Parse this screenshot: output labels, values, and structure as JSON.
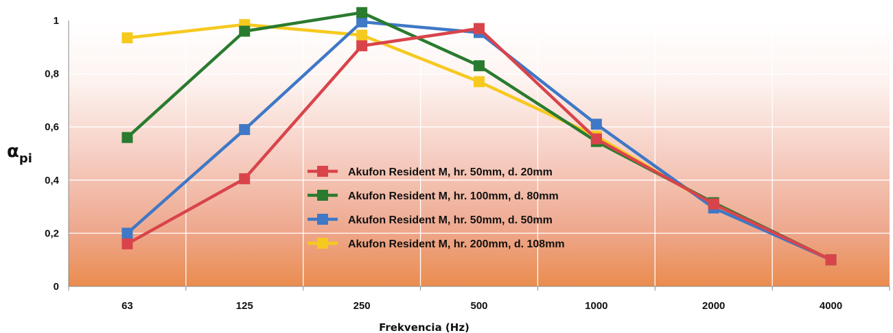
{
  "chart_data": {
    "type": "line",
    "categories": [
      "63",
      "125",
      "250",
      "500",
      "1000",
      "2000",
      "4000"
    ],
    "series": [
      {
        "name": "Akufon Resident M, hr. 50mm, d. 20mm",
        "color": "#d9444b",
        "values": [
          0.16,
          0.405,
          0.905,
          0.97,
          0.555,
          0.31,
          0.1
        ]
      },
      {
        "name": "Akufon Resident M, hr. 100mm, d. 80mm",
        "color": "#2a7b2f",
        "values": [
          0.56,
          0.96,
          1.03,
          0.83,
          0.545,
          0.315,
          0.1
        ]
      },
      {
        "name": "Akufon Resident M, hr. 50mm, d. 50mm",
        "color": "#3f78c6",
        "values": [
          0.2,
          0.59,
          0.995,
          0.955,
          0.61,
          0.295,
          0.1
        ]
      },
      {
        "name": "Akufon Resident M, hr. 200mm, d. 108mm",
        "color": "#f6c91e",
        "values": [
          0.935,
          0.985,
          0.945,
          0.77,
          0.565,
          0.305,
          0.1
        ]
      }
    ],
    "xlabel": "Frekvencia (Hz)",
    "ylabel_main": "α",
    "ylabel_sub": "pi",
    "ylim": [
      0,
      1
    ],
    "yticks": [
      0,
      0.2,
      0.4,
      0.6,
      0.8,
      1
    ],
    "ytick_labels": [
      "0",
      "0,2",
      "0,4",
      "0,6",
      "0,8",
      "1"
    ],
    "grid": true,
    "legend_position": "center"
  }
}
